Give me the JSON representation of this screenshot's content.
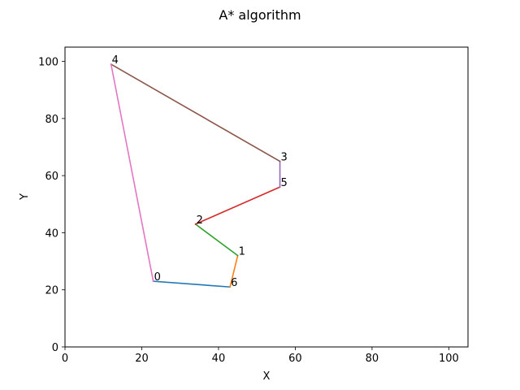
{
  "chart_data": {
    "type": "line",
    "title": "A* algorithm",
    "xlabel": "X",
    "ylabel": "Y",
    "xlim": [
      0,
      105
    ],
    "ylim": [
      0,
      105
    ],
    "xticks": [
      0,
      20,
      40,
      60,
      80,
      100
    ],
    "yticks": [
      0,
      20,
      40,
      60,
      80,
      100
    ],
    "grid": false,
    "legend": "none",
    "points": [
      {
        "label": "0",
        "x": 23,
        "y": 23
      },
      {
        "label": "1",
        "x": 45,
        "y": 32
      },
      {
        "label": "2",
        "x": 34,
        "y": 43
      },
      {
        "label": "3",
        "x": 56,
        "y": 65
      },
      {
        "label": "4",
        "x": 12,
        "y": 99
      },
      {
        "label": "5",
        "x": 56,
        "y": 56
      },
      {
        "label": "6",
        "x": 43,
        "y": 21
      }
    ],
    "segments": [
      {
        "from": "0",
        "to": "6",
        "color": "#1f77b4"
      },
      {
        "from": "6",
        "to": "1",
        "color": "#ff7f0e"
      },
      {
        "from": "1",
        "to": "2",
        "color": "#2ca02c"
      },
      {
        "from": "2",
        "to": "5",
        "color": "#d62728"
      },
      {
        "from": "5",
        "to": "3",
        "color": "#9467bd"
      },
      {
        "from": "3",
        "to": "4",
        "color": "#8c564b"
      },
      {
        "from": "4",
        "to": "0",
        "color": "#e377c2"
      }
    ]
  }
}
